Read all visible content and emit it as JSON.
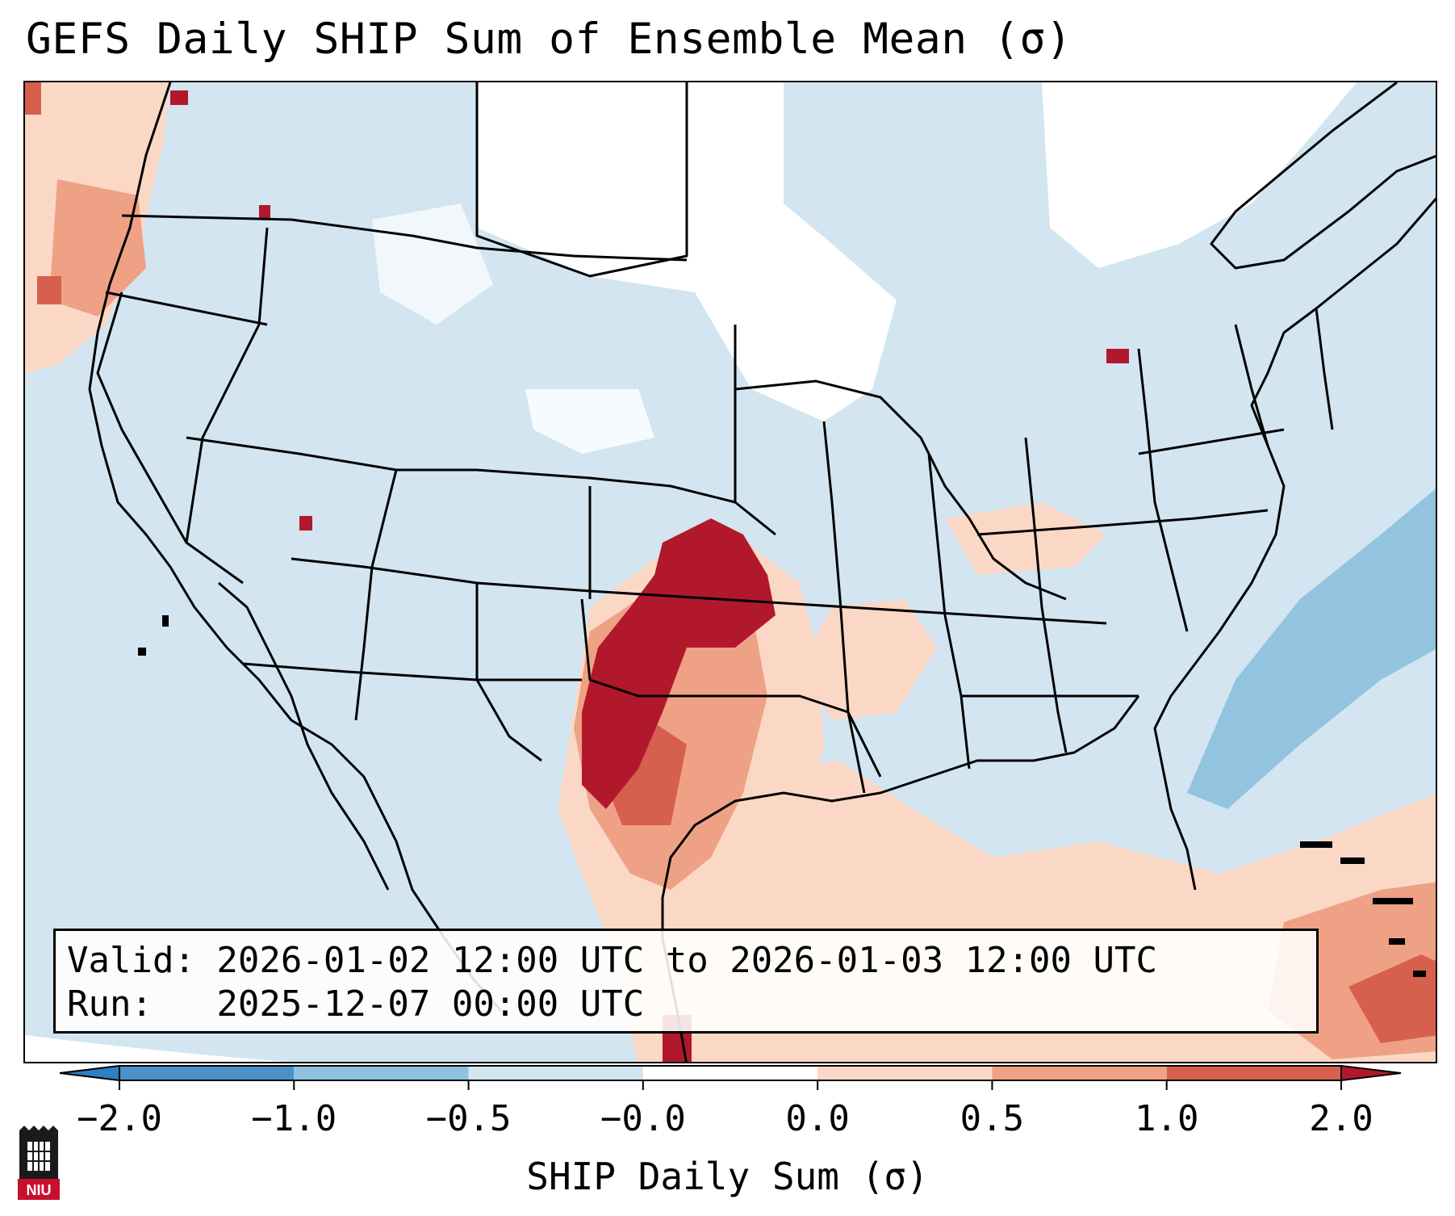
{
  "title": "GEFS Daily SHIP Sum of Ensemble Mean (σ)",
  "info": {
    "valid_line": "Valid: 2026-01-02 12:00 UTC to 2026-01-03 12:00 UTC",
    "run_line": "Run:   2025-12-07 00:00 UTC"
  },
  "colorbar": {
    "label": "SHIP Daily Sum (σ)",
    "ticks": [
      "−2.0",
      "−1.0",
      "−0.5",
      "−0.0",
      "0.0",
      "0.5",
      "1.0",
      "2.0"
    ],
    "colors": [
      "#2f7fc0",
      "#8fc2df",
      "#d2e5f1",
      "#ffffff",
      "#fbd8c6",
      "#efa185",
      "#d6604d",
      "#b2182b"
    ],
    "extend": "both"
  },
  "logo": {
    "text": "NIU"
  },
  "map": {
    "region": "Contiguous United States",
    "field_colors": {
      "neg_low": "#d2e5f1",
      "neg_mid": "#93c4df",
      "neutral": "#ffffff",
      "pos_low": "#fbd8c6",
      "pos_mid": "#efa185",
      "pos_high": "#d6604d",
      "pos_max": "#b2182b"
    }
  }
}
